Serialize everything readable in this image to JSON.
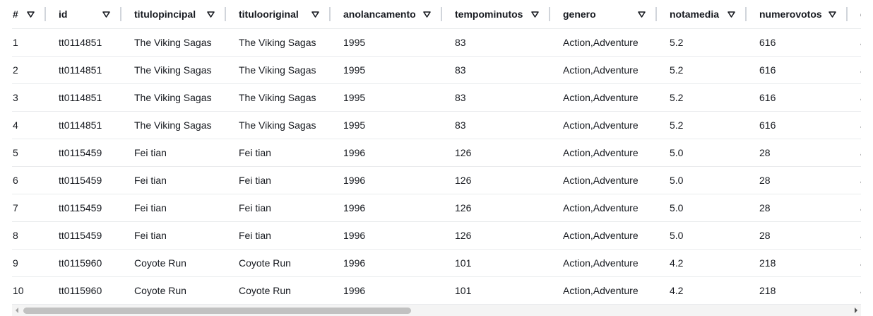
{
  "table": {
    "columns": [
      {
        "label": "#"
      },
      {
        "label": "id"
      },
      {
        "label": "titulopincipal"
      },
      {
        "label": "titulooriginal"
      },
      {
        "label": "anolancamento"
      },
      {
        "label": "tempominutos"
      },
      {
        "label": "genero"
      },
      {
        "label": "notamedia"
      },
      {
        "label": "numerovotos"
      },
      {
        "label": "g"
      }
    ],
    "rows": [
      [
        "1",
        "tt0114851",
        "The Viking Sagas",
        "The Viking Sagas",
        "1995",
        "83",
        "Action,Adventure",
        "5.2",
        "616",
        "a"
      ],
      [
        "2",
        "tt0114851",
        "The Viking Sagas",
        "The Viking Sagas",
        "1995",
        "83",
        "Action,Adventure",
        "5.2",
        "616",
        "a"
      ],
      [
        "3",
        "tt0114851",
        "The Viking Sagas",
        "The Viking Sagas",
        "1995",
        "83",
        "Action,Adventure",
        "5.2",
        "616",
        "a"
      ],
      [
        "4",
        "tt0114851",
        "The Viking Sagas",
        "The Viking Sagas",
        "1995",
        "83",
        "Action,Adventure",
        "5.2",
        "616",
        "a"
      ],
      [
        "5",
        "tt0115459",
        "Fei tian",
        "Fei tian",
        "1996",
        "126",
        "Action,Adventure",
        "5.0",
        "28",
        "a"
      ],
      [
        "6",
        "tt0115459",
        "Fei tian",
        "Fei tian",
        "1996",
        "126",
        "Action,Adventure",
        "5.0",
        "28",
        "a"
      ],
      [
        "7",
        "tt0115459",
        "Fei tian",
        "Fei tian",
        "1996",
        "126",
        "Action,Adventure",
        "5.0",
        "28",
        "a"
      ],
      [
        "8",
        "tt0115459",
        "Fei tian",
        "Fei tian",
        "1996",
        "126",
        "Action,Adventure",
        "5.0",
        "28",
        "a"
      ],
      [
        "9",
        "tt0115960",
        "Coyote Run",
        "Coyote Run",
        "1996",
        "101",
        "Action,Adventure",
        "4.2",
        "218",
        "a"
      ],
      [
        "10",
        "tt0115960",
        "Coyote Run",
        "Coyote Run",
        "1996",
        "101",
        "Action,Adventure",
        "4.2",
        "218",
        "a"
      ]
    ],
    "sort_icon": "sort-caret-down-icon"
  },
  "scrollbar": {
    "left_icon": "scroll-left-icon",
    "right_icon": "scroll-right-icon",
    "horizontal_position": 0.0
  },
  "colors": {
    "text": "#16191f",
    "row_border": "#e9ebed",
    "header_divider": "#d1d5db",
    "scroll_track": "#f4f4f4",
    "scroll_thumb": "#c1c1c1"
  }
}
